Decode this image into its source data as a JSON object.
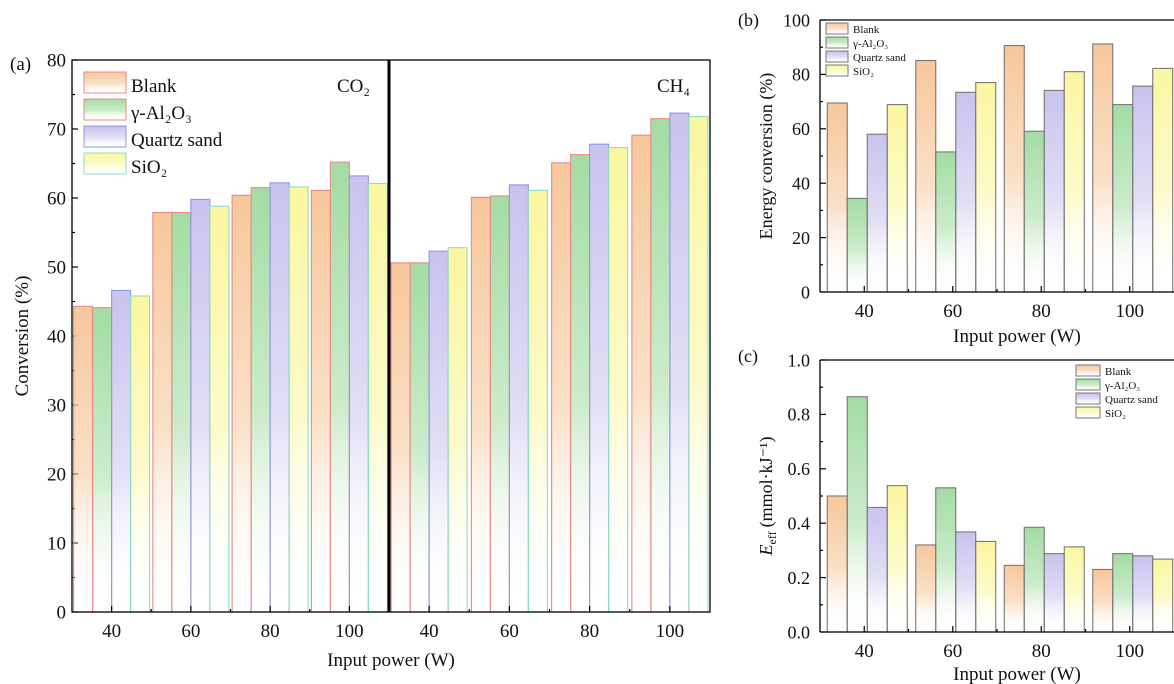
{
  "colors": {
    "Blank": "#f7c79b",
    "gamma-Al2O3": "#a3dca3",
    "Quartz sand": "#c9c3ee",
    "SiO2": "#fbf6a0"
  },
  "strokes": {
    "a": {
      "Blank": "#e88a8a",
      "gamma-Al2O3": "#e88a8a",
      "Quartz sand": "#8a9bdd",
      "SiO2": "#8fdcc4"
    },
    "bc": {
      "Blank": "#777777",
      "gamma-Al2O3": "#777777",
      "Quartz sand": "#777777",
      "SiO2": "#777777"
    }
  },
  "chart_data": [
    {
      "id": "a",
      "panel_label": "(a)",
      "type": "bar",
      "xlabel": "Input power (W)",
      "ylabel": "Conversion (%)",
      "ylim": [
        0,
        80
      ],
      "yticks": [
        "0",
        "10",
        "20",
        "30",
        "40",
        "50",
        "60",
        "70",
        "80"
      ],
      "legend": [
        {
          "key": "Blank",
          "label": "Blank"
        },
        {
          "key": "gamma-Al2O3",
          "label": "γ-Al₂O₃"
        },
        {
          "key": "Quartz sand",
          "label": "Quartz sand"
        },
        {
          "key": "SiO2",
          "label": "SiO₂"
        }
      ],
      "subpanels": [
        {
          "name": "CO₂",
          "categories": [
            "40",
            "60",
            "80",
            "100"
          ],
          "series": [
            {
              "name": "Blank",
              "values": [
                44.3,
                57.9,
                60.4,
                61.1
              ]
            },
            {
              "name": "γ-Al₂O₃",
              "values": [
                44.1,
                57.9,
                61.5,
                65.2
              ]
            },
            {
              "name": "Quartz sand",
              "values": [
                46.6,
                59.8,
                62.2,
                63.2
              ]
            },
            {
              "name": "SiO₂",
              "values": [
                45.8,
                58.8,
                61.6,
                62.1
              ]
            }
          ]
        },
        {
          "name": "CH₄",
          "categories": [
            "40",
            "60",
            "80",
            "100"
          ],
          "series": [
            {
              "name": "Blank",
              "values": [
                50.6,
                60.1,
                65.1,
                69.1
              ]
            },
            {
              "name": "γ-Al₂O₃",
              "values": [
                50.6,
                60.3,
                66.3,
                71.5
              ]
            },
            {
              "name": "Quartz sand",
              "values": [
                52.3,
                61.9,
                67.8,
                72.3
              ]
            },
            {
              "name": "SiO₂",
              "values": [
                52.8,
                61.1,
                67.3,
                71.8
              ]
            }
          ]
        }
      ]
    },
    {
      "id": "b",
      "panel_label": "(b)",
      "type": "bar",
      "xlabel": "Input power (W)",
      "ylabel": "Energy conversion (%)",
      "ylim": [
        0,
        100
      ],
      "yticks": [
        "0",
        "20",
        "40",
        "60",
        "80",
        "100"
      ],
      "categories": [
        "40",
        "60",
        "80",
        "100"
      ],
      "legend": [
        {
          "key": "Blank",
          "label": "Blank"
        },
        {
          "key": "gamma-Al2O3",
          "label": "γ-Al₂O₃"
        },
        {
          "key": "Quartz sand",
          "label": "Quartz sand"
        },
        {
          "key": "SiO2",
          "label": "SiO₂"
        }
      ],
      "series": [
        {
          "name": "Blank",
          "values": [
            69.5,
            85.1,
            90.6,
            91.2
          ]
        },
        {
          "name": "γ-Al₂O₃",
          "values": [
            34.4,
            51.5,
            59.1,
            68.9
          ]
        },
        {
          "name": "Quartz sand",
          "values": [
            58.0,
            73.4,
            74.1,
            75.7
          ]
        },
        {
          "name": "SiO₂",
          "values": [
            68.9,
            77.0,
            81.0,
            82.2
          ]
        }
      ]
    },
    {
      "id": "c",
      "panel_label": "(c)",
      "type": "bar",
      "xlabel": "Input power (W)",
      "ylabel_main": "E",
      "ylabel_sub": "eff",
      "ylabel_unit": "(mmol·kJ⁻¹)",
      "ylim": [
        0,
        1.0
      ],
      "yticks": [
        "0.0",
        "0.2",
        "0.4",
        "0.6",
        "0.8",
        "1.0"
      ],
      "categories": [
        "40",
        "60",
        "80",
        "100"
      ],
      "legend": [
        {
          "key": "Blank",
          "label": "Blank"
        },
        {
          "key": "gamma-Al2O3",
          "label": "γ-Al₂O₃"
        },
        {
          "key": "Quartz sand",
          "label": "Quartz sand"
        },
        {
          "key": "SiO2",
          "label": "SiO₂"
        }
      ],
      "series": [
        {
          "name": "Blank",
          "values": [
            0.5,
            0.32,
            0.245,
            0.23
          ]
        },
        {
          "name": "γ-Al₂O₃",
          "values": [
            0.865,
            0.53,
            0.385,
            0.288
          ]
        },
        {
          "name": "Quartz sand",
          "values": [
            0.458,
            0.368,
            0.288,
            0.28
          ]
        },
        {
          "name": "SiO₂",
          "values": [
            0.538,
            0.333,
            0.313,
            0.268
          ]
        }
      ]
    }
  ]
}
